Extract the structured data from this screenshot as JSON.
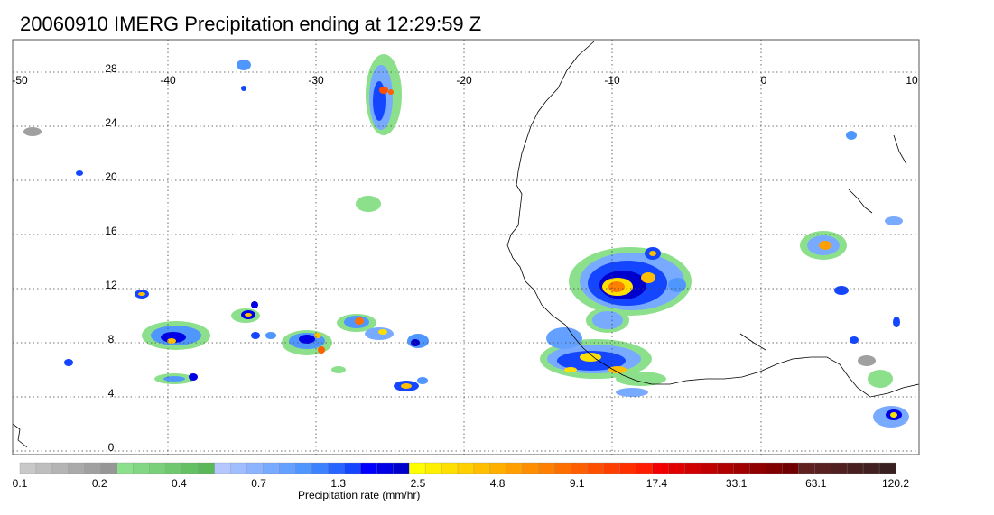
{
  "title": "20060910 IMERG Precipitation ending at 12:29:59 Z",
  "map": {
    "lon_range": [
      -50,
      10
    ],
    "lat_range": [
      -1,
      30
    ],
    "lon_ticks": [
      "-50",
      "-40",
      "-30",
      "-20",
      "-10",
      "0",
      "10"
    ],
    "lat_ticks": [
      "0",
      "4",
      "8",
      "12",
      "16",
      "20",
      "24",
      "28"
    ],
    "grid": "dotted"
  },
  "colorbar": {
    "title": "Precipitation rate (mm/hr)",
    "tick_labels": [
      "0.1",
      "0.2",
      "0.4",
      "0.7",
      "1.3",
      "2.5",
      "4.8",
      "9.1",
      "17.4",
      "33.1",
      "63.1",
      "120.2"
    ],
    "colors": [
      "#c8c8c8",
      "#bebebe",
      "#b4b4b4",
      "#aaaaaa",
      "#a0a0a0",
      "#969696",
      "#8ce08c",
      "#82d882",
      "#78d078",
      "#6ec86e",
      "#64c064",
      "#5ab85a",
      "#b4c8ff",
      "#a0beff",
      "#8cb4ff",
      "#78aaff",
      "#64a0ff",
      "#5096ff",
      "#3c82ff",
      "#2864ff",
      "#1446ff",
      "#0000ff",
      "#0000e6",
      "#0000cd",
      "#ffff00",
      "#ffef00",
      "#ffdf00",
      "#ffcf00",
      "#ffbf00",
      "#ffaf00",
      "#ff9f00",
      "#ff8f00",
      "#ff7f00",
      "#ff6f00",
      "#ff5f00",
      "#ff4f00",
      "#ff3f00",
      "#ff2f00",
      "#ff1f00",
      "#f00000",
      "#e00000",
      "#d00000",
      "#c00000",
      "#b00000",
      "#a00000",
      "#900000",
      "#800000",
      "#700000",
      "#602020",
      "#582020",
      "#502020",
      "#482020",
      "#402020",
      "#382020"
    ]
  }
}
